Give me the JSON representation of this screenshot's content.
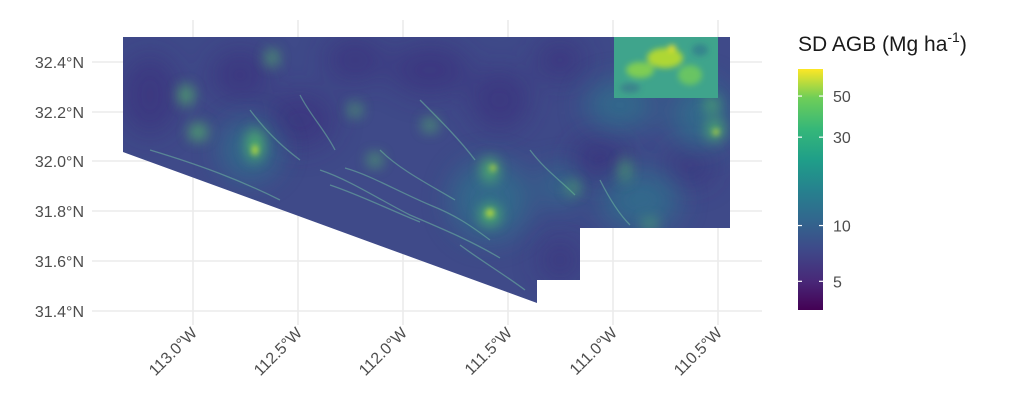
{
  "map": {
    "lat_ticks": [
      "32.4°N",
      "32.2°N",
      "32.0°N",
      "31.8°N",
      "31.6°N",
      "31.4°N"
    ],
    "lon_ticks": [
      "113.0°W",
      "112.5°W",
      "112.0°W",
      "111.5°W",
      "111.0°W",
      "110.5°W"
    ],
    "grid": true,
    "raster_colormap": "viridis",
    "colors": {
      "background": "#ffffff",
      "gridline": "#ebebeb",
      "raster_base": "#3f4a89",
      "axis_text": "#4d4d4d"
    }
  },
  "legend": {
    "title_main": "SD AGB (Mg ha",
    "title_sup": "-1",
    "title_close": ")",
    "scale": "log",
    "range": [
      3.5,
      70
    ],
    "ticks": [
      "50",
      "30",
      "10",
      "5"
    ],
    "tick_values": [
      50,
      30,
      10,
      5
    ]
  }
}
